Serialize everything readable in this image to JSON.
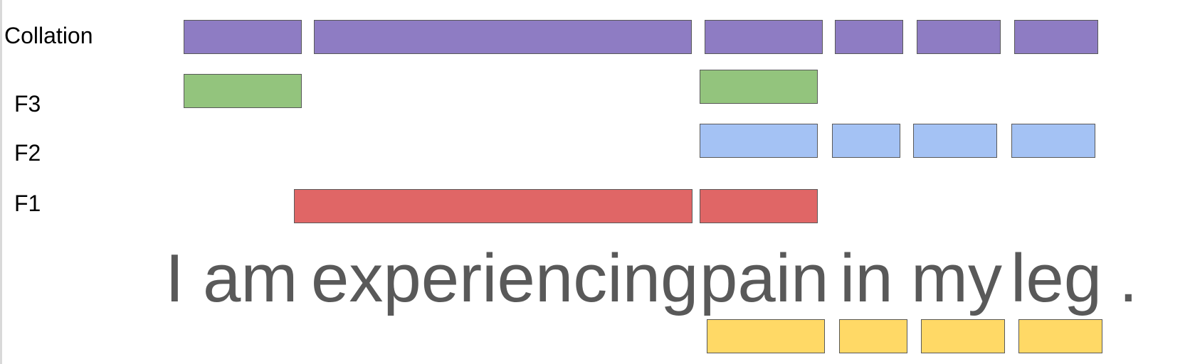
{
  "colors": {
    "collation": "#8e7cc3",
    "f3": "#93c47d",
    "f2": "#a4c2f4",
    "f1": "#e06666",
    "highlight": "#ffd966",
    "text": "#595959",
    "border": "#595959"
  },
  "rows": {
    "collation": {
      "label": "Collation",
      "tokens": [
        "I",
        "am experiencing",
        "pain",
        "in",
        "my",
        "leg"
      ]
    },
    "f3": {
      "label": "F3",
      "tokens": [
        "I",
        "pain"
      ]
    },
    "f2": {
      "label": "F2",
      "tokens": [
        "pain",
        "in",
        "my",
        "leg"
      ]
    },
    "f1": {
      "label": "F1",
      "tokens": [
        "am experiencing",
        "pain"
      ]
    },
    "highlight": {
      "tokens": [
        "pain",
        "in",
        "my",
        "leg"
      ]
    }
  },
  "sentence": {
    "words": [
      "I",
      "am",
      "experiencing",
      "pain",
      "in",
      "my",
      "leg",
      "."
    ]
  }
}
